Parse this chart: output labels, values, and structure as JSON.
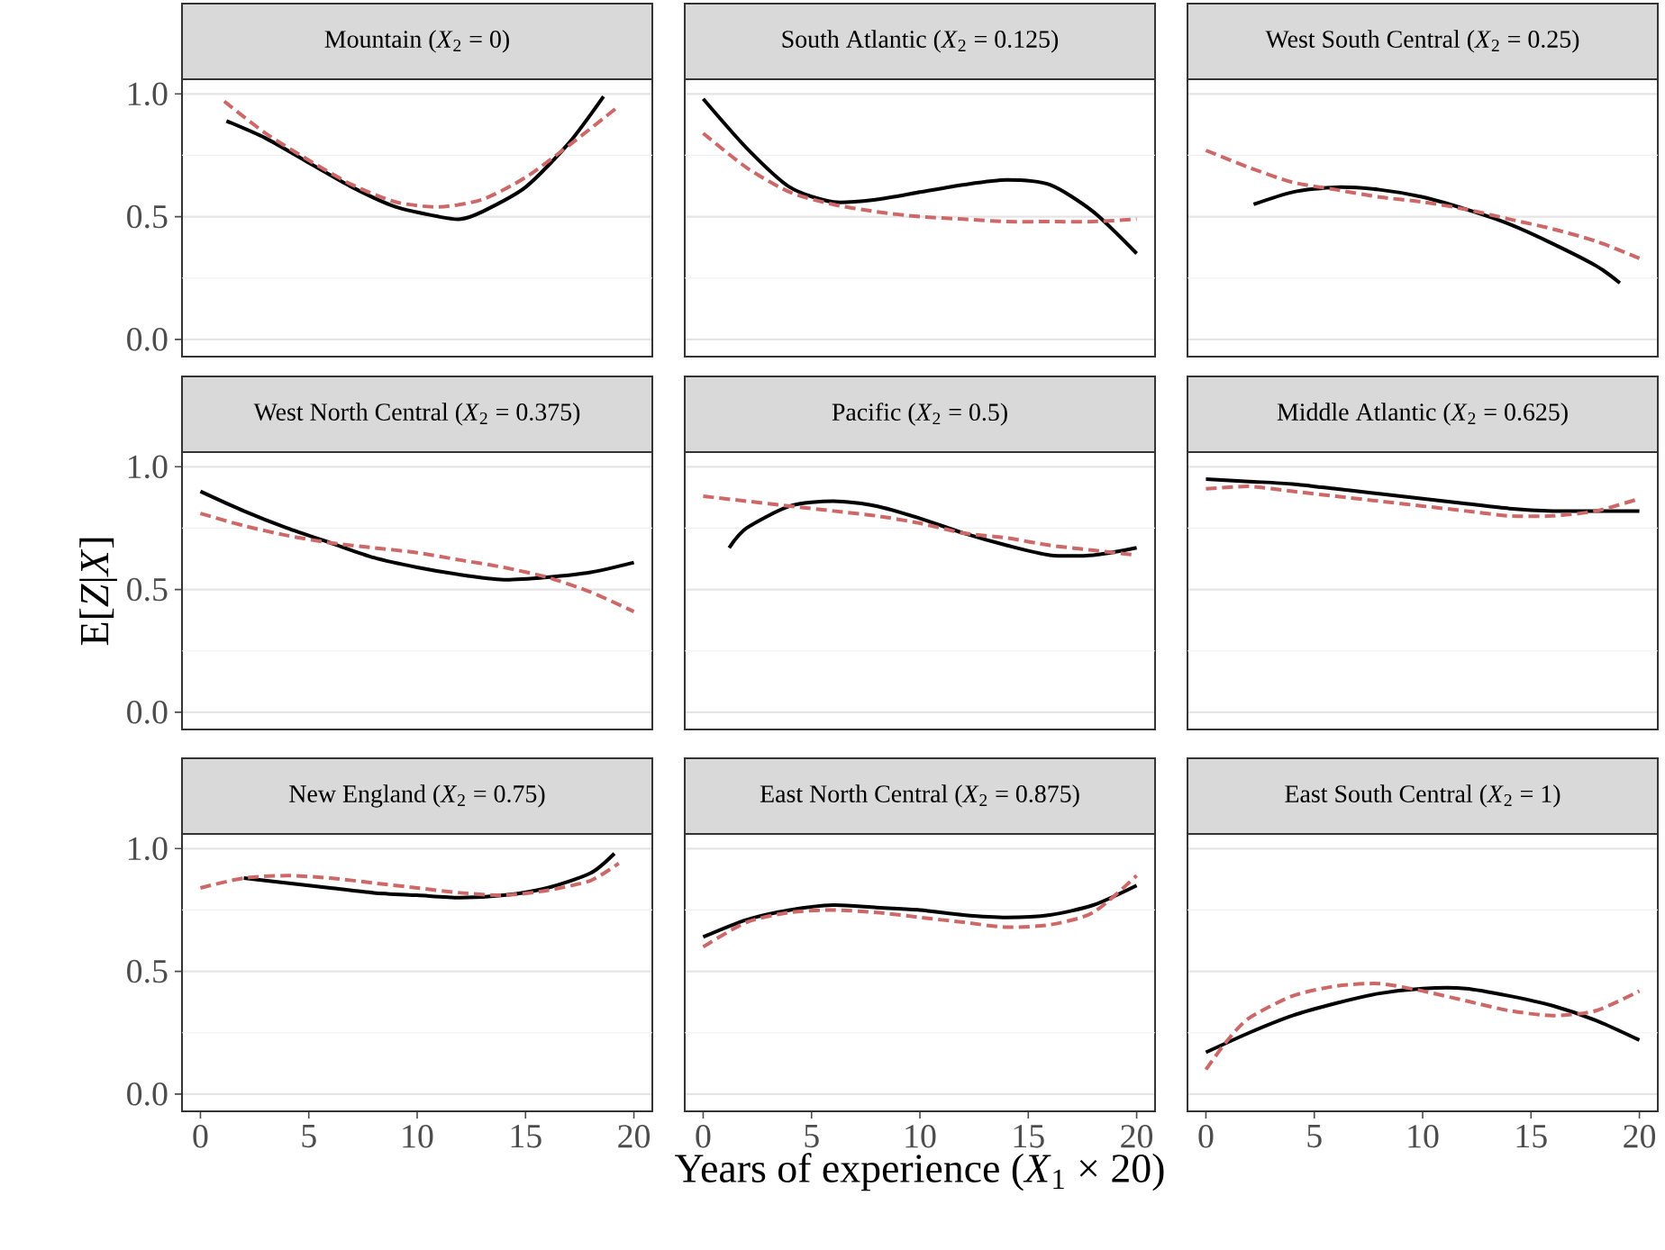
{
  "chart_data": [
    {
      "type": "line",
      "title": "Mountain (*X*$_{2}$ = 0)",
      "ref_lines": [
        {
          "axis": "y",
          "value": 0.25,
          "color": "#f0f0f0"
        },
        {
          "axis": "y",
          "value": 0.75,
          "color": "#f0f0f0"
        }
      ],
      "xlim": [
        -0.85,
        20.85
      ],
      "ylim": [
        -0.07,
        1.06
      ],
      "xticks": [
        0,
        5,
        10,
        15,
        20
      ],
      "yticks": [
        {
          "value": 0,
          "label": "0.0"
        },
        {
          "value": 0.5,
          "label": "0.5"
        },
        {
          "value": 1,
          "label": "1.0"
        }
      ],
      "grid": "y",
      "tick_labels": "y",
      "series": [
        {
          "color": "#000000",
          "line_style": "solid",
          "x": [
            1.2,
            3,
            5,
            7,
            9,
            11,
            12,
            13,
            15,
            17,
            18.6
          ],
          "values": [
            0.89,
            0.82,
            0.72,
            0.62,
            0.54,
            0.5,
            0.49,
            0.52,
            0.62,
            0.8,
            0.99
          ]
        },
        {
          "color": "#cd6868",
          "line_style": "dashed",
          "x": [
            1.1,
            3,
            5,
            7,
            9,
            11,
            13,
            15,
            17,
            19.3
          ],
          "values": [
            0.97,
            0.84,
            0.73,
            0.63,
            0.56,
            0.54,
            0.57,
            0.66,
            0.79,
            0.95
          ]
        }
      ]
    },
    {
      "type": "line",
      "title": "South Atlantic (*X*$_{2}$ = 0.125)",
      "ref_lines": [
        {
          "axis": "y",
          "value": 0.25,
          "color": "#f0f0f0"
        },
        {
          "axis": "y",
          "value": 0.75,
          "color": "#f0f0f0"
        }
      ],
      "xlim": [
        -0.85,
        20.85
      ],
      "ylim": [
        -0.07,
        1.06
      ],
      "xticks": [
        0,
        5,
        10,
        15,
        20
      ],
      "yticks": [
        0,
        0.5,
        1
      ],
      "grid": "y",
      "tick_labels": false,
      "series": [
        {
          "color": "#000000",
          "line_style": "solid",
          "x": [
            0,
            2,
            4,
            6,
            8,
            10,
            12,
            14,
            16,
            18,
            20
          ],
          "values": [
            0.98,
            0.78,
            0.62,
            0.56,
            0.57,
            0.6,
            0.63,
            0.65,
            0.63,
            0.52,
            0.35
          ]
        },
        {
          "color": "#cd6868",
          "line_style": "dashed",
          "x": [
            0,
            2,
            4,
            6,
            8,
            10,
            12,
            14,
            16,
            18,
            20
          ],
          "values": [
            0.84,
            0.7,
            0.6,
            0.55,
            0.52,
            0.5,
            0.49,
            0.48,
            0.48,
            0.48,
            0.49
          ]
        }
      ]
    },
    {
      "type": "line",
      "title": "West South Central (*X*$_{2}$ = 0.25)",
      "ref_lines": [
        {
          "axis": "y",
          "value": 0.25,
          "color": "#f0f0f0"
        },
        {
          "axis": "y",
          "value": 0.75,
          "color": "#f0f0f0"
        }
      ],
      "xlim": [
        -0.85,
        20.85
      ],
      "ylim": [
        -0.07,
        1.06
      ],
      "xticks": [
        0,
        5,
        10,
        15,
        20
      ],
      "yticks": [
        0,
        0.5,
        1
      ],
      "grid": "y",
      "tick_labels": false,
      "series": [
        {
          "color": "#000000",
          "line_style": "solid",
          "x": [
            2.2,
            4,
            6,
            8,
            10,
            12,
            14,
            16,
            18,
            19.1
          ],
          "values": [
            0.55,
            0.6,
            0.62,
            0.61,
            0.58,
            0.53,
            0.47,
            0.39,
            0.3,
            0.23
          ]
        },
        {
          "color": "#cd6868",
          "line_style": "dashed",
          "x": [
            0,
            2,
            4,
            6,
            8,
            10,
            12,
            14,
            16,
            18,
            20
          ],
          "values": [
            0.77,
            0.7,
            0.64,
            0.61,
            0.58,
            0.56,
            0.53,
            0.49,
            0.45,
            0.4,
            0.33
          ]
        }
      ]
    },
    {
      "type": "line",
      "title": "West North Central (*X*$_{2}$ = 0.375)",
      "ref_lines": [
        {
          "axis": "y",
          "value": 0.25,
          "color": "#f0f0f0"
        },
        {
          "axis": "y",
          "value": 0.75,
          "color": "#f0f0f0"
        }
      ],
      "ylabel": "E[*Z*|*X*]",
      "xlim": [
        -0.85,
        20.85
      ],
      "ylim": [
        -0.07,
        1.06
      ],
      "xticks": [
        0,
        5,
        10,
        15,
        20
      ],
      "yticks": [
        {
          "value": 0,
          "label": "0.0"
        },
        {
          "value": 0.5,
          "label": "0.5"
        },
        {
          "value": 1,
          "label": "1.0"
        }
      ],
      "grid": "y",
      "tick_labels": "y",
      "series": [
        {
          "color": "#000000",
          "line_style": "solid",
          "x": [
            0,
            2,
            4,
            6,
            8,
            10,
            12,
            14,
            16,
            18,
            20
          ],
          "values": [
            0.9,
            0.82,
            0.75,
            0.69,
            0.63,
            0.59,
            0.56,
            0.54,
            0.55,
            0.57,
            0.61
          ]
        },
        {
          "color": "#cd6868",
          "line_style": "dashed",
          "x": [
            0,
            2,
            4,
            6,
            8,
            10,
            12,
            14,
            16,
            18,
            20
          ],
          "values": [
            0.81,
            0.76,
            0.72,
            0.69,
            0.67,
            0.65,
            0.62,
            0.59,
            0.55,
            0.49,
            0.41
          ]
        }
      ]
    },
    {
      "type": "line",
      "title": "Pacific (*X*$_{2}$ = 0.5)",
      "ref_lines": [
        {
          "axis": "y",
          "value": 0.25,
          "color": "#f0f0f0"
        },
        {
          "axis": "y",
          "value": 0.75,
          "color": "#f0f0f0"
        }
      ],
      "xlim": [
        -0.85,
        20.85
      ],
      "ylim": [
        -0.07,
        1.06
      ],
      "xticks": [
        0,
        5,
        10,
        15,
        20
      ],
      "yticks": [
        0,
        0.5,
        1
      ],
      "grid": "y",
      "tick_labels": false,
      "series": [
        {
          "color": "#000000",
          "line_style": "solid",
          "x": [
            1.2,
            2,
            4,
            6,
            8,
            10,
            12,
            14,
            16,
            18,
            20
          ],
          "values": [
            0.67,
            0.75,
            0.84,
            0.86,
            0.84,
            0.79,
            0.73,
            0.68,
            0.64,
            0.64,
            0.67
          ]
        },
        {
          "color": "#cd6868",
          "line_style": "dashed",
          "x": [
            0,
            2,
            4,
            6,
            8,
            10,
            12,
            14,
            16,
            18,
            20
          ],
          "values": [
            0.88,
            0.86,
            0.84,
            0.82,
            0.8,
            0.77,
            0.73,
            0.71,
            0.68,
            0.66,
            0.64
          ]
        }
      ]
    },
    {
      "type": "line",
      "title": "Middle Atlantic (*X*$_{2}$ = 0.625)",
      "ref_lines": [
        {
          "axis": "y",
          "value": 0.25,
          "color": "#f0f0f0"
        },
        {
          "axis": "y",
          "value": 0.75,
          "color": "#f0f0f0"
        }
      ],
      "xlim": [
        -0.85,
        20.85
      ],
      "ylim": [
        -0.07,
        1.06
      ],
      "xticks": [
        0,
        5,
        10,
        15,
        20
      ],
      "yticks": [
        0,
        0.5,
        1
      ],
      "grid": "y",
      "tick_labels": false,
      "series": [
        {
          "color": "#000000",
          "line_style": "solid",
          "x": [
            0,
            2,
            4,
            6,
            8,
            10,
            12,
            14,
            16,
            18,
            20
          ],
          "values": [
            0.95,
            0.94,
            0.93,
            0.91,
            0.89,
            0.87,
            0.85,
            0.83,
            0.82,
            0.82,
            0.82
          ]
        },
        {
          "color": "#cd6868",
          "line_style": "dashed",
          "x": [
            0,
            2,
            4,
            6,
            8,
            10,
            12,
            14,
            16,
            18,
            20
          ],
          "values": [
            0.91,
            0.92,
            0.9,
            0.88,
            0.86,
            0.84,
            0.82,
            0.8,
            0.8,
            0.82,
            0.87
          ]
        }
      ]
    },
    {
      "type": "line",
      "title": "New England (*X*$_{2}$ = 0.75)",
      "ref_lines": [
        {
          "axis": "y",
          "value": 0.25,
          "color": "#f0f0f0"
        },
        {
          "axis": "y",
          "value": 0.75,
          "color": "#f0f0f0"
        }
      ],
      "xlim": [
        -0.85,
        20.85
      ],
      "ylim": [
        -0.07,
        1.06
      ],
      "xticks": [
        0,
        5,
        10,
        15,
        20
      ],
      "yticks": [
        {
          "value": 0,
          "label": "0.0"
        },
        {
          "value": 0.5,
          "label": "0.5"
        },
        {
          "value": 1,
          "label": "1.0"
        }
      ],
      "grid": "y",
      "series": [
        {
          "color": "#000000",
          "line_style": "solid",
          "x": [
            2,
            4,
            6,
            8,
            10,
            12,
            14,
            16,
            18,
            19.1
          ],
          "values": [
            0.88,
            0.86,
            0.84,
            0.82,
            0.81,
            0.8,
            0.81,
            0.84,
            0.9,
            0.98
          ]
        },
        {
          "color": "#cd6868",
          "line_style": "dashed",
          "x": [
            0,
            2,
            4,
            6,
            8,
            10,
            12,
            14,
            16,
            18,
            19.3
          ],
          "values": [
            0.84,
            0.88,
            0.89,
            0.88,
            0.86,
            0.84,
            0.82,
            0.81,
            0.83,
            0.87,
            0.94
          ]
        }
      ]
    },
    {
      "type": "line",
      "title": "East North Central (*X*$_{2}$ = 0.875)",
      "ref_lines": [
        {
          "axis": "y",
          "value": 0.25,
          "color": "#f0f0f0"
        },
        {
          "axis": "y",
          "value": 0.75,
          "color": "#f0f0f0"
        }
      ],
      "xlabel": "Years of experience (*X*$_{1}$ × 20)",
      "xlim": [
        -0.85,
        20.85
      ],
      "ylim": [
        -0.07,
        1.06
      ],
      "xticks": [
        0,
        5,
        10,
        15,
        20
      ],
      "yticks": [
        0,
        0.5,
        1
      ],
      "grid": "y",
      "tick_labels": "x",
      "series": [
        {
          "color": "#000000",
          "line_style": "solid",
          "x": [
            0,
            2,
            4,
            6,
            8,
            10,
            12,
            14,
            16,
            18,
            20
          ],
          "values": [
            0.64,
            0.71,
            0.75,
            0.77,
            0.76,
            0.75,
            0.73,
            0.72,
            0.73,
            0.77,
            0.85
          ]
        },
        {
          "color": "#cd6868",
          "line_style": "dashed",
          "x": [
            0,
            2,
            4,
            6,
            8,
            10,
            12,
            14,
            16,
            18,
            20
          ],
          "values": [
            0.6,
            0.7,
            0.74,
            0.75,
            0.74,
            0.72,
            0.7,
            0.68,
            0.69,
            0.74,
            0.89
          ]
        }
      ]
    },
    {
      "type": "line",
      "title": "East South Central (*X*$_{2}$ = 1)",
      "ref_lines": [
        {
          "axis": "y",
          "value": 0.25,
          "color": "#f0f0f0"
        },
        {
          "axis": "y",
          "value": 0.75,
          "color": "#f0f0f0"
        }
      ],
      "xlim": [
        -0.85,
        20.85
      ],
      "ylim": [
        -0.07,
        1.06
      ],
      "xticks": [
        0,
        5,
        10,
        15,
        20
      ],
      "yticks": [
        0,
        0.5,
        1
      ],
      "grid": "y",
      "tick_labels": "x",
      "series": [
        {
          "color": "#000000",
          "line_style": "solid",
          "x": [
            0,
            2,
            4,
            6,
            8,
            10,
            12,
            14,
            16,
            18,
            20
          ],
          "values": [
            0.17,
            0.25,
            0.32,
            0.37,
            0.41,
            0.43,
            0.43,
            0.4,
            0.36,
            0.3,
            0.22
          ]
        },
        {
          "color": "#cd6868",
          "line_style": "dashed",
          "x": [
            0,
            1,
            2,
            4,
            6,
            8,
            10,
            12,
            14,
            16,
            18,
            20
          ],
          "values": [
            0.1,
            0.22,
            0.31,
            0.4,
            0.44,
            0.45,
            0.42,
            0.38,
            0.34,
            0.32,
            0.34,
            0.42
          ]
        }
      ]
    }
  ]
}
